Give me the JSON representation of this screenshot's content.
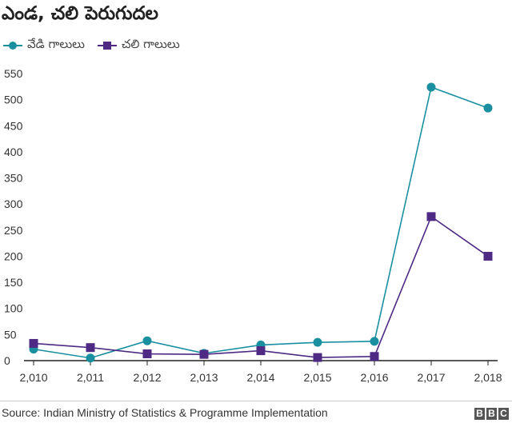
{
  "title": "ఎండ, చలి పెరుగుదల",
  "source": "Source: Indian Ministry of Statistics & Programme Implementation",
  "logo": [
    "B",
    "B",
    "C"
  ],
  "chart_data": {
    "type": "line",
    "title": "ఎండ, చలి పెరుగుదల",
    "x": [
      "2,010",
      "2,011",
      "2,012",
      "2,013",
      "2,014",
      "2,015",
      "2,016",
      "2,017",
      "2,018"
    ],
    "xlabel": "",
    "ylabel": "",
    "ylim": [
      0,
      550
    ],
    "yticks": [
      0,
      50,
      100,
      150,
      200,
      250,
      300,
      350,
      400,
      450,
      500,
      550
    ],
    "grid": false,
    "legend_position": "top-left",
    "series": [
      {
        "name": "వేడి గాలులు",
        "marker": "circle",
        "color": "#1a8fa0",
        "values": [
          22,
          5,
          38,
          14,
          30,
          35,
          37,
          524,
          484
        ]
      },
      {
        "name": "చలి గాలులు",
        "marker": "square",
        "color": "#4e2a84",
        "values": [
          33,
          25,
          13,
          12,
          19,
          6,
          8,
          276,
          200
        ]
      }
    ]
  }
}
